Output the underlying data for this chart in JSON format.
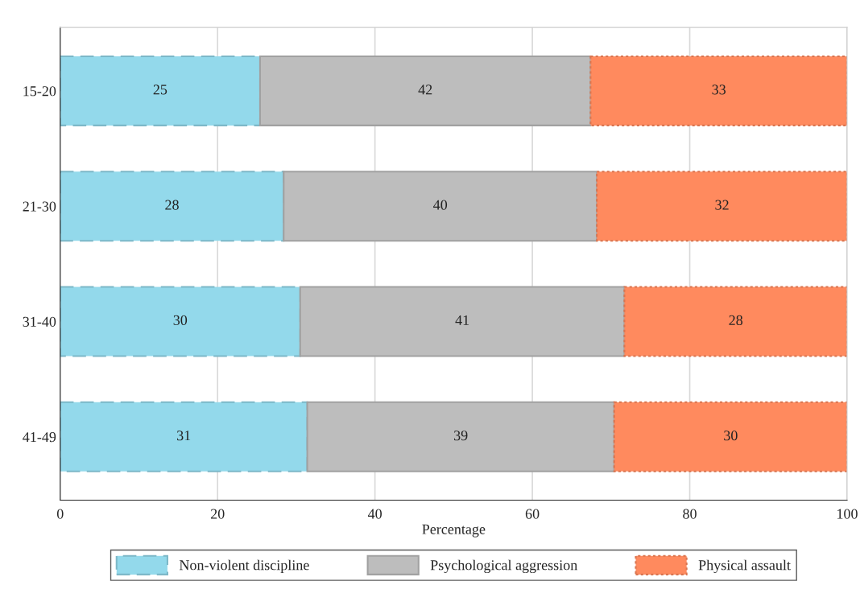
{
  "chart_data": {
    "type": "bar",
    "orientation": "horizontal",
    "stacked": true,
    "categories": [
      "15-20",
      "21-30",
      "31-40",
      "41-49"
    ],
    "xlabel": "Percentage",
    "xlim": [
      0,
      100
    ],
    "xticks": [
      0,
      20,
      40,
      60,
      80,
      100
    ],
    "grid": "x",
    "legend": "bottom",
    "series": [
      {
        "name": "Non-violent discipline",
        "color": "#93d9eb",
        "line_style": "dashed",
        "values": [
          25.4,
          28.4,
          30.5,
          31.4
        ],
        "value_labels": [
          "25",
          "28",
          "30",
          "31"
        ]
      },
      {
        "name": "Psychological aggression",
        "color": "#bdbdbd",
        "line_style": "solid",
        "values": [
          42.0,
          39.8,
          41.2,
          39.0
        ],
        "value_labels": [
          "42",
          "40",
          "41",
          "39"
        ]
      },
      {
        "name": "Physical assault",
        "color": "#ff8a5e",
        "line_style": "dotted",
        "values": [
          32.6,
          31.8,
          28.3,
          29.6
        ],
        "value_labels": [
          "33",
          "32",
          "28",
          "30"
        ]
      }
    ]
  }
}
